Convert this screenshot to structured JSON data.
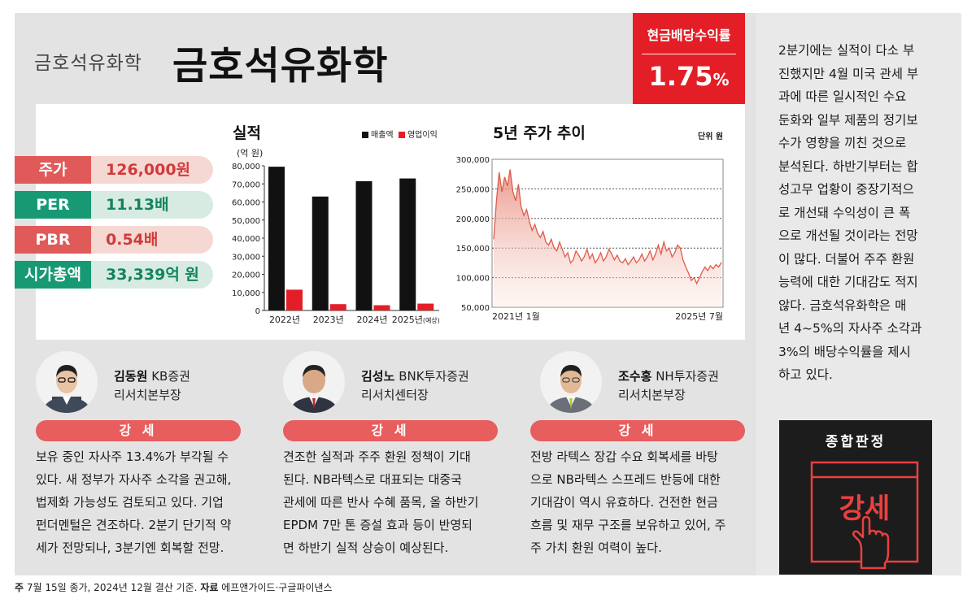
{
  "header": {
    "company_small": "금호석유화학",
    "company_big": "금호석유화학",
    "yield_label": "현금배당수익률",
    "yield_value": "1.75",
    "yield_unit": "%"
  },
  "metrics": [
    {
      "key": "주가",
      "value": "126,000원",
      "color": "#e05a5a"
    },
    {
      "key": "PER",
      "value": "11.13배",
      "color": "#179a73"
    },
    {
      "key": "PBR",
      "value": "0.54배",
      "color": "#e05a5a"
    },
    {
      "key": "시가총액",
      "value": "33,339억 원",
      "color": "#179a73"
    }
  ],
  "performance_chart": {
    "title": "실적",
    "unit": "(억 원)",
    "legend": [
      "매출액",
      "영업이익"
    ]
  },
  "price_chart": {
    "title": "5년 주가 추이",
    "unit": "단위 원"
  },
  "chart_data": [
    {
      "type": "bar",
      "title": "실적",
      "ylabel": "(억 원)",
      "categories": [
        "2022년",
        "2023년",
        "2024년",
        "2025년"
      ],
      "category_note": "(예상)",
      "ylim": [
        0,
        80000
      ],
      "yticks": [
        "0",
        "10,000",
        "20,000",
        "30,000",
        "40,000",
        "50,000",
        "60,000",
        "70,000",
        "80,000"
      ],
      "series": [
        {
          "name": "매출액",
          "color": "#111111",
          "values": [
            79500,
            63000,
            71500,
            73000
          ]
        },
        {
          "name": "영업이익",
          "color": "#e41e26",
          "values": [
            11500,
            3500,
            2900,
            3800
          ]
        }
      ],
      "legend": "top-right",
      "grid": false
    },
    {
      "type": "area",
      "title": "5년 주가 추이",
      "ylabel": "단위 원",
      "x_start_label": "2021년 1월",
      "x_end_label": "2025년 7월",
      "ylim": [
        50000,
        300000
      ],
      "yticks": [
        "50,000",
        "100,000",
        "150,000",
        "200,000",
        "250,000",
        "300,000"
      ],
      "color": "#e05a4a",
      "grid": "dotted horizontal",
      "values": [
        165000,
        230000,
        278000,
        245000,
        270000,
        255000,
        283000,
        245000,
        230000,
        258000,
        220000,
        205000,
        215000,
        195000,
        180000,
        190000,
        175000,
        168000,
        178000,
        160000,
        155000,
        165000,
        150000,
        145000,
        160000,
        148000,
        135000,
        142000,
        125000,
        130000,
        145000,
        138000,
        128000,
        135000,
        148000,
        132000,
        140000,
        125000,
        132000,
        142000,
        128000,
        135000,
        148000,
        140000,
        130000,
        138000,
        128000,
        125000,
        132000,
        122000,
        128000,
        135000,
        125000,
        130000,
        140000,
        128000,
        135000,
        145000,
        130000,
        140000,
        155000,
        140000,
        160000,
        145000,
        150000,
        135000,
        142000,
        155000,
        150000,
        130000,
        118000,
        108000,
        95000,
        100000,
        90000,
        100000,
        110000,
        118000,
        112000,
        120000,
        115000,
        122000,
        118000,
        126000
      ]
    }
  ],
  "analysts": [
    {
      "name": "김동원",
      "firm": "KB증권",
      "title": "리서치본부장",
      "rating": "강 세",
      "comment": [
        "보유 중인 자사주 13.4%가 부각될 수",
        "있다. 새 정부가 자사주 소각을 권고해,",
        "법제화 가능성도 검토되고 있다. 기업",
        "펀더멘털은 견조하다. 2분기 단기적 약",
        "세가 전망되나, 3분기엔 회복할 전망."
      ]
    },
    {
      "name": "김성노",
      "firm": "BNK투자증권",
      "title": "리서치센터장",
      "rating": "강 세",
      "comment": [
        "견조한 실적과 주주 환원 정책이 기대",
        "된다. NB라텍스로 대표되는 대중국",
        "관세에 따른 반사 수혜 품목, 올 하반기",
        "EPDM 7만 톤 증설 효과 등이 반영되",
        "면 하반기 실적 상승이 예상된다."
      ]
    },
    {
      "name": "조수홍",
      "firm": "NH투자증권",
      "title": "리서치본부장",
      "rating": "강 세",
      "comment": [
        "전방 라텍스 장갑 수요 회복세를 바탕",
        "으로 NB라텍스 스프레드 반등에 대한",
        "기대감이 역시 유효하다. 건전한 현금",
        "흐름 및 재무 구조를 보유하고 있어, 주",
        "주 가치 환원 여력이 높다."
      ]
    }
  ],
  "sidebar": {
    "text_lines": [
      "2분기에는 실적이 다소 부",
      "진했지만 4월 미국 관세 부",
      "과에 따른 일시적인 수요",
      "둔화와 일부 제품의 정기보",
      "수가 영향을 끼친 것으로",
      "분석된다. 하반기부터는 합",
      "성고무 업황이 중장기적으",
      "로 개선돼 수익성이 큰 폭",
      "으로 개선될 것이라는 전망",
      "이 많다. 더불어 주주 환원",
      "능력에 대한 기대감도 적지",
      "않다. 금호석유화학은 매",
      "년 4~5%의 자사주 소각과",
      "3%의 배당수익률을 제시",
      "하고 있다."
    ],
    "verdict_title": "종합판정",
    "verdict_value": "강세",
    "verdict_icon": "pointing-hand-icon"
  },
  "footnote": {
    "prefix": "주",
    "text1": " 7월 15일 종가, 2024년 12월 결산 기준. ",
    "source_label": "자료",
    "text2": " 에프앤가이드·구글파이낸스"
  }
}
